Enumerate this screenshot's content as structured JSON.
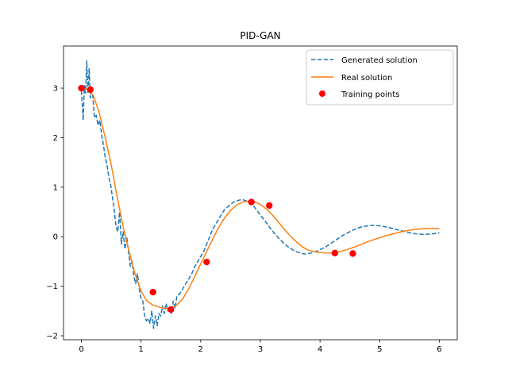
{
  "chart_data": {
    "type": "line",
    "title": "PID-GAN",
    "xlabel": "",
    "ylabel": "",
    "xlim": [
      -0.3,
      6.3
    ],
    "ylim": [
      -2.08,
      3.85
    ],
    "xticks": [
      0,
      1,
      2,
      3,
      4,
      5,
      6
    ],
    "yticks": [
      -2,
      -1,
      0,
      1,
      2,
      3
    ],
    "grid": false,
    "legend_position": "top-right",
    "colors": {
      "generated": "#1f77b4",
      "real": "#ff7f0e",
      "training": "#ff0000"
    },
    "legend": [
      {
        "label": "Generated solution",
        "style": "dashed-line",
        "color": "#1f77b4"
      },
      {
        "label": "Real solution",
        "style": "solid-line",
        "color": "#ff7f0e"
      },
      {
        "label": "Training points",
        "style": "marker",
        "color": "#ff0000"
      }
    ],
    "series": [
      {
        "name": "Generated solution",
        "style": "dashed",
        "x": [
          0.0,
          0.03,
          0.05,
          0.07,
          0.09,
          0.11,
          0.13,
          0.15,
          0.17,
          0.19,
          0.22,
          0.25,
          0.28,
          0.31,
          0.34,
          0.37,
          0.4,
          0.43,
          0.46,
          0.49,
          0.52,
          0.55,
          0.58,
          0.61,
          0.64,
          0.67,
          0.7,
          0.73,
          0.76,
          0.79,
          0.82,
          0.85,
          0.88,
          0.91,
          0.94,
          0.97,
          1.0,
          1.03,
          1.06,
          1.09,
          1.12,
          1.15,
          1.18,
          1.21,
          1.24,
          1.27,
          1.3,
          1.33,
          1.36,
          1.39,
          1.42,
          1.45,
          1.48,
          1.51,
          1.54,
          1.57,
          1.6,
          1.65,
          1.7,
          1.75,
          1.8,
          1.85,
          1.9,
          1.95,
          2.0,
          2.05,
          2.1,
          2.15,
          2.2,
          2.25,
          2.3,
          2.35,
          2.4,
          2.45,
          2.5,
          2.55,
          2.6,
          2.65,
          2.7,
          2.75,
          2.8,
          2.85,
          2.9,
          2.95,
          3.0,
          3.05,
          3.1,
          3.15,
          3.2,
          3.25,
          3.3,
          3.35,
          3.4,
          3.45,
          3.5,
          3.55,
          3.6,
          3.65,
          3.7,
          3.75,
          3.8,
          3.85,
          3.9,
          3.95,
          4.0,
          4.05,
          4.1,
          4.15,
          4.2,
          4.25,
          4.3,
          4.35,
          4.4,
          4.45,
          4.5,
          4.55,
          4.6,
          4.65,
          4.7,
          4.8,
          4.9,
          5.0,
          5.1,
          5.2,
          5.3,
          5.4,
          5.5,
          5.6,
          5.7,
          5.8,
          5.9,
          6.0
        ],
        "y": [
          2.95,
          2.35,
          3.05,
          2.9,
          3.55,
          2.9,
          3.4,
          2.8,
          3.0,
          2.85,
          2.4,
          2.45,
          2.25,
          2.35,
          2.05,
          1.85,
          1.6,
          1.45,
          1.2,
          1.05,
          0.8,
          0.55,
          0.2,
          0.1,
          0.5,
          -0.15,
          0.1,
          -0.25,
          0.0,
          -0.3,
          -0.6,
          -0.5,
          -0.8,
          -0.95,
          -0.75,
          -1.05,
          -1.25,
          -1.3,
          -1.6,
          -1.7,
          -1.65,
          -1.75,
          -1.5,
          -1.85,
          -1.6,
          -1.8,
          -1.55,
          -1.6,
          -1.4,
          -1.55,
          -1.35,
          -1.5,
          -1.45,
          -1.55,
          -1.3,
          -1.45,
          -1.2,
          -1.15,
          -1.05,
          -0.95,
          -0.85,
          -0.75,
          -0.6,
          -0.5,
          -0.4,
          -0.3,
          -0.15,
          0.0,
          0.15,
          0.25,
          0.35,
          0.45,
          0.55,
          0.6,
          0.65,
          0.7,
          0.72,
          0.74,
          0.75,
          0.73,
          0.7,
          0.66,
          0.6,
          0.52,
          0.44,
          0.36,
          0.28,
          0.2,
          0.12,
          0.05,
          -0.02,
          -0.08,
          -0.14,
          -0.19,
          -0.23,
          -0.27,
          -0.3,
          -0.32,
          -0.34,
          -0.35,
          -0.34,
          -0.33,
          -0.31,
          -0.29,
          -0.26,
          -0.23,
          -0.2,
          -0.16,
          -0.12,
          -0.08,
          -0.04,
          0.0,
          0.04,
          0.07,
          0.1,
          0.13,
          0.16,
          0.18,
          0.2,
          0.22,
          0.23,
          0.22,
          0.2,
          0.17,
          0.14,
          0.11,
          0.08,
          0.06,
          0.05,
          0.05,
          0.06,
          0.08
        ]
      },
      {
        "name": "Real solution",
        "style": "solid",
        "x": [
          0.0,
          0.1,
          0.2,
          0.3,
          0.4,
          0.5,
          0.6,
          0.7,
          0.8,
          0.9,
          1.0,
          1.1,
          1.2,
          1.3,
          1.4,
          1.5,
          1.6,
          1.7,
          1.8,
          1.9,
          2.0,
          2.1,
          2.2,
          2.3,
          2.4,
          2.5,
          2.6,
          2.7,
          2.8,
          2.9,
          3.0,
          3.1,
          3.2,
          3.3,
          3.4,
          3.5,
          3.6,
          3.7,
          3.8,
          3.9,
          4.0,
          4.1,
          4.2,
          4.3,
          4.4,
          4.5,
          4.6,
          4.7,
          4.8,
          4.9,
          5.0,
          5.1,
          5.2,
          5.3,
          5.4,
          5.5,
          5.6,
          5.7,
          5.8,
          5.9,
          6.0
        ],
        "y": [
          3.0,
          2.98,
          2.85,
          2.5,
          2.0,
          1.45,
          0.8,
          0.2,
          -0.3,
          -0.75,
          -1.1,
          -1.3,
          -1.38,
          -1.42,
          -1.45,
          -1.45,
          -1.38,
          -1.25,
          -1.05,
          -0.8,
          -0.55,
          -0.3,
          -0.05,
          0.18,
          0.38,
          0.53,
          0.64,
          0.7,
          0.72,
          0.71,
          0.65,
          0.56,
          0.44,
          0.3,
          0.15,
          0.02,
          -0.1,
          -0.2,
          -0.27,
          -0.3,
          -0.32,
          -0.33,
          -0.33,
          -0.31,
          -0.28,
          -0.24,
          -0.2,
          -0.15,
          -0.1,
          -0.06,
          -0.02,
          0.02,
          0.05,
          0.08,
          0.11,
          0.13,
          0.15,
          0.16,
          0.17,
          0.17,
          0.16
        ]
      }
    ],
    "training_points": {
      "name": "Training points",
      "x": [
        0.0,
        0.15,
        1.2,
        1.5,
        2.1,
        2.85,
        3.15,
        4.25,
        4.55
      ],
      "y": [
        3.0,
        2.97,
        -1.12,
        -1.47,
        -0.51,
        0.7,
        0.63,
        -0.33,
        -0.34
      ]
    }
  }
}
